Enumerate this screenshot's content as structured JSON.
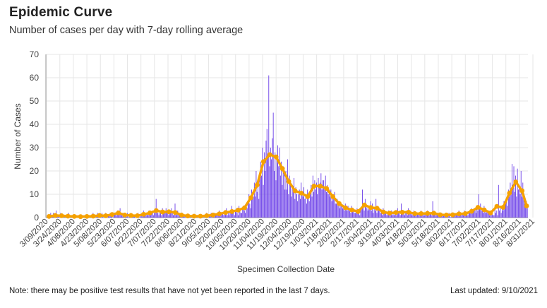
{
  "title": "Epidemic Curve",
  "subtitle": "Number of cases per day with 7-day rolling average",
  "note": "Note: there may be positive test results that have not yet been reported in the last 7 days.",
  "last_updated": "Last updated: 9/10/2021",
  "colors": {
    "bars": "#6a3de8",
    "average": "#f5a100",
    "grid": "#e6e6e6",
    "axis": "#999999"
  },
  "chart_data": {
    "type": "bar",
    "xlabel": "Specimen Collection Date",
    "ylabel": "Number of Cases",
    "ylim": [
      0,
      70
    ],
    "yticks": [
      0,
      10,
      20,
      30,
      40,
      50,
      60,
      70
    ],
    "grid": true,
    "x_tick_labels": [
      "3/09/2020",
      "3/24/2020",
      "4/08/2020",
      "4/23/2020",
      "5/08/2020",
      "5/23/2020",
      "6/07/2020",
      "6/22/2020",
      "7/07/2020",
      "7/22/2020",
      "8/06/2020",
      "8/21/2020",
      "9/05/2020",
      "9/20/2020",
      "10/05/2020",
      "10/20/2020",
      "11/04/2020",
      "11/19/2020",
      "12/04/2020",
      "12/19/2020",
      "1/03/2021",
      "1/18/2021",
      "2/02/2021",
      "2/17/2021",
      "3/04/2021",
      "3/19/2021",
      "4/03/2021",
      "4/18/2021",
      "5/03/2021",
      "5/18/2021",
      "6/02/2021",
      "6/17/2021",
      "7/02/2021",
      "7/17/2021",
      "8/01/2021",
      "8/16/2021",
      "8/31/2021"
    ],
    "start_date": "3/09/2020",
    "series": [
      {
        "kind": "bars",
        "weekly_daily_values": [
          [
            0,
            1,
            0,
            1,
            1,
            2,
            1
          ],
          [
            1,
            2,
            1,
            0,
            3,
            1,
            1
          ],
          [
            1,
            0,
            2,
            1,
            1,
            0,
            1
          ],
          [
            0,
            1,
            1,
            0,
            2,
            1,
            0
          ],
          [
            1,
            0,
            0,
            1,
            1,
            0,
            1
          ],
          [
            0,
            1,
            0,
            0,
            1,
            1,
            0
          ],
          [
            1,
            0,
            1,
            0,
            0,
            1,
            1
          ],
          [
            0,
            1,
            1,
            2,
            0,
            1,
            0
          ],
          [
            1,
            2,
            1,
            0,
            1,
            0,
            2
          ],
          [
            1,
            0,
            1,
            2,
            1,
            0,
            1
          ],
          [
            1,
            2,
            2,
            1,
            0,
            1,
            2
          ],
          [
            2,
            1,
            3,
            1,
            2,
            4,
            1
          ],
          [
            1,
            2,
            1,
            0,
            1,
            1,
            2
          ],
          [
            0,
            1,
            1,
            2,
            0,
            1,
            1
          ],
          [
            1,
            0,
            1,
            1,
            2,
            1,
            0
          ],
          [
            1,
            2,
            1,
            3,
            1,
            2,
            1
          ],
          [
            2,
            1,
            3,
            2,
            1,
            2,
            3
          ],
          [
            1,
            2,
            4,
            8,
            3,
            2,
            1
          ],
          [
            2,
            3,
            1,
            4,
            2,
            3,
            2
          ],
          [
            4,
            3,
            2,
            1,
            3,
            2,
            4
          ],
          [
            2,
            1,
            2,
            6,
            1,
            2,
            3
          ],
          [
            1,
            2,
            1,
            0,
            2,
            1,
            1
          ],
          [
            1,
            0,
            1,
            1,
            0,
            1,
            1
          ],
          [
            0,
            1,
            1,
            0,
            1,
            0,
            1
          ],
          [
            1,
            0,
            0,
            1,
            1,
            0,
            1
          ],
          [
            0,
            1,
            1,
            2,
            1,
            0,
            1
          ],
          [
            1,
            2,
            0,
            1,
            1,
            2,
            1
          ],
          [
            1,
            2,
            1,
            3,
            2,
            1,
            2
          ],
          [
            2,
            1,
            3,
            2,
            4,
            1,
            2
          ],
          [
            1,
            2,
            3,
            5,
            2,
            3,
            1
          ],
          [
            3,
            4,
            2,
            1,
            5,
            3,
            2
          ],
          [
            2,
            4,
            5,
            3,
            2,
            6,
            4
          ],
          [
            7,
            10,
            6,
            4,
            12,
            8,
            9
          ],
          [
            15,
            9,
            20,
            11,
            14,
            8,
            19
          ],
          [
            24,
            18,
            30,
            14,
            28,
            20,
            33
          ],
          [
            38,
            26,
            61,
            22,
            30,
            25,
            34
          ],
          [
            45,
            20,
            28,
            16,
            25,
            31,
            22
          ],
          [
            30,
            18,
            24,
            14,
            22,
            19,
            12
          ],
          [
            20,
            12,
            25,
            10,
            18,
            15,
            9
          ],
          [
            14,
            11,
            17,
            8,
            13,
            10,
            7
          ],
          [
            10,
            12,
            8,
            15,
            11,
            9,
            13
          ],
          [
            8,
            10,
            6,
            12,
            9,
            7,
            11
          ],
          [
            14,
            9,
            18,
            11,
            16,
            12,
            15
          ],
          [
            10,
            17,
            13,
            15,
            19,
            12,
            16
          ],
          [
            16,
            13,
            18,
            11,
            14,
            10,
            12
          ],
          [
            9,
            12,
            7,
            10,
            8,
            11,
            6
          ],
          [
            6,
            8,
            5,
            7,
            4,
            6,
            5
          ],
          [
            4,
            5,
            3,
            6,
            4,
            3,
            5
          ],
          [
            3,
            4,
            2,
            5,
            3,
            4,
            2
          ],
          [
            2,
            3,
            4,
            2,
            3,
            1,
            3
          ],
          [
            4,
            12,
            6,
            3,
            8,
            5,
            4
          ],
          [
            3,
            5,
            4,
            7,
            3,
            6,
            2
          ],
          [
            4,
            3,
            8,
            2,
            5,
            3,
            4
          ],
          [
            2,
            3,
            1,
            4,
            2,
            3,
            2
          ],
          [
            1,
            2,
            3,
            1,
            2,
            3,
            1
          ],
          [
            2,
            1,
            3,
            2,
            1,
            4,
            2
          ],
          [
            3,
            1,
            6,
            2,
            3,
            2,
            1
          ],
          [
            2,
            3,
            1,
            4,
            2,
            3,
            2
          ],
          [
            1,
            2,
            3,
            1,
            2,
            1,
            2
          ],
          [
            2,
            1,
            2,
            3,
            1,
            2,
            1
          ],
          [
            1,
            2,
            1,
            3,
            2,
            1,
            2
          ],
          [
            2,
            1,
            7,
            1,
            2,
            1,
            1
          ],
          [
            1,
            2,
            1,
            0,
            1,
            2,
            1
          ],
          [
            1,
            1,
            2,
            1,
            0,
            1,
            2
          ],
          [
            1,
            0,
            2,
            1,
            1,
            2,
            1
          ],
          [
            1,
            2,
            1,
            3,
            1,
            2,
            1
          ],
          [
            2,
            1,
            3,
            2,
            1,
            2,
            1
          ],
          [
            2,
            3,
            2,
            4,
            2,
            3,
            3
          ],
          [
            3,
            2,
            4,
            3,
            10,
            4,
            6
          ],
          [
            3,
            4,
            2,
            5,
            3,
            2,
            3
          ],
          [
            2,
            3,
            1,
            2,
            3,
            2,
            1
          ],
          [
            1,
            4,
            2,
            3,
            1,
            14,
            3
          ],
          [
            4,
            2,
            5,
            3,
            7,
            4,
            6
          ],
          [
            8,
            5,
            12,
            9,
            15,
            10,
            23
          ],
          [
            14,
            22,
            11,
            18,
            9,
            21,
            12
          ],
          [
            13,
            10,
            20,
            9,
            15,
            8,
            6
          ],
          [
            5,
            7,
            4
          ]
        ]
      },
      {
        "kind": "line",
        "name": "7-day rolling average",
        "weekly_values": [
          0.5,
          0.9,
          0.8,
          0.6,
          0.5,
          0.4,
          0.5,
          0.6,
          0.9,
          0.8,
          1.3,
          2.0,
          1.1,
          0.9,
          0.8,
          1.4,
          2.0,
          3.0,
          2.4,
          2.5,
          2.2,
          1.1,
          0.7,
          0.6,
          0.6,
          0.8,
          1.1,
          1.6,
          2.2,
          2.6,
          3.2,
          4.2,
          8.5,
          14,
          24,
          27,
          26,
          21,
          15.5,
          11.5,
          10.5,
          9,
          13.5,
          13.5,
          12.5,
          9,
          6,
          4.2,
          3.3,
          2.6,
          5.4,
          4.3,
          4,
          2.4,
          1.9,
          2.2,
          2.3,
          2.3,
          1.7,
          1.7,
          1.8,
          1.9,
          1.2,
          1.1,
          1.2,
          1.6,
          1.7,
          2.7,
          4.4,
          3.3,
          2,
          4.8,
          4.4,
          10.5,
          15.3,
          11.5,
          5
        ]
      }
    ]
  }
}
